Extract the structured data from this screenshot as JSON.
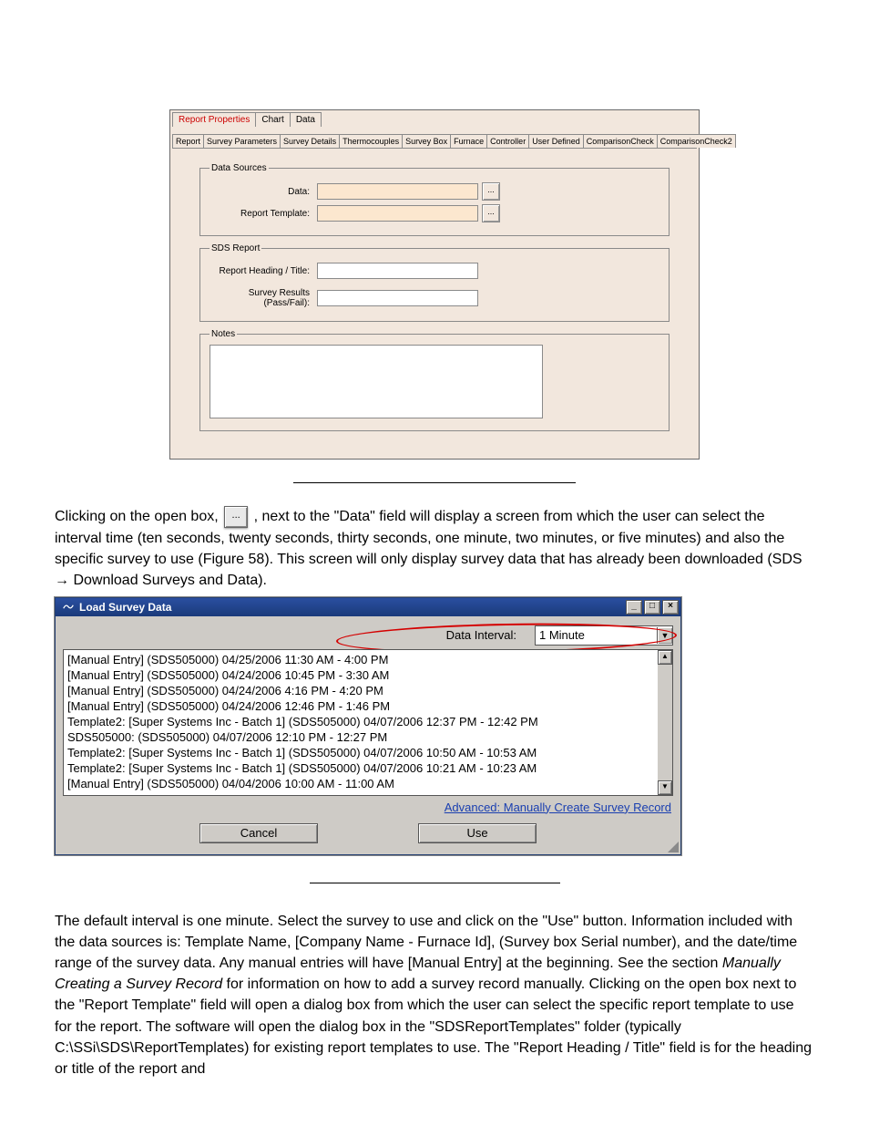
{
  "win1": {
    "topTabs": [
      {
        "label": "Report Properties",
        "active": true
      },
      {
        "label": "Chart",
        "active": false
      },
      {
        "label": "Data",
        "active": false
      }
    ],
    "subTabs": [
      "Report",
      "Survey Parameters",
      "Survey Details",
      "Thermocouples",
      "Survey Box",
      "Furnace",
      "Controller",
      "User Defined",
      "ComparisonCheck",
      "ComparisonCheck2"
    ],
    "groups": {
      "dataSources": {
        "legend": "Data Sources",
        "data_label": "Data:",
        "template_label": "Report Template:",
        "browse": "..."
      },
      "sdsReport": {
        "legend": "SDS Report",
        "heading_label": "Report Heading / Title:",
        "results_label": "Survey Results (Pass/Fail):"
      },
      "notes": {
        "legend": "Notes"
      }
    }
  },
  "para1_a": "Clicking on the open box, ",
  "para1_b": ", next to the \"Data\" field will display a screen from which the user can select the interval time (ten seconds, twenty seconds, thirty seconds, one minute, two minutes, or five minutes) and also the specific survey to use (Figure 58).  This screen will only display survey data that has already been downloaded (SDS → Download Surveys and Data).",
  "inline_browse": "...",
  "win2": {
    "title": "Load Survey Data",
    "winbtns": {
      "min": "_",
      "max": "□",
      "close": "×"
    },
    "di_label": "Data Interval:",
    "di_value": "1 Minute",
    "items": [
      "[Manual Entry]  (SDS505000) 04/25/2006 11:30 AM - 4:00 PM",
      "[Manual Entry]  (SDS505000) 04/24/2006 10:45 PM - 3:30 AM",
      "[Manual Entry]  (SDS505000) 04/24/2006 4:16 PM - 4:20 PM",
      "[Manual Entry]  (SDS505000) 04/24/2006 12:46 PM - 1:46 PM",
      "Template2: [Super Systems Inc - Batch 1]  (SDS505000) 04/07/2006 12:37 PM - 12:42 PM",
      "SDS505000:  (SDS505000) 04/07/2006 12:10 PM - 12:27 PM",
      "Template2: [Super Systems Inc - Batch 1]  (SDS505000) 04/07/2006 10:50 AM - 10:53 AM",
      "Template2: [Super Systems Inc - Batch 1]  (SDS505000) 04/07/2006 10:21 AM - 10:23 AM",
      "[Manual Entry]  (SDS505000) 04/04/2006 10:00 AM - 11:00 AM"
    ],
    "adv": "Advanced: Manually Create Survey Record",
    "cancel": "Cancel",
    "use": "Use",
    "scroll": {
      "up": "▲",
      "down": "▼"
    },
    "dd": "▼"
  },
  "para2_a": "The default interval is one minute.  Select the survey to use and click on the \"Use\" button.  Information included with the data sources is: Template Name, [Company Name - Furnace Id], (Survey box Serial number), and the date/time range of the survey data.  Any manual entries will have [Manual Entry] at the beginning.  See the section ",
  "para2_i": "Manually Creating a Survey Record",
  "para2_b": " for information on how to add a survey record manually.  Clicking on the open box next to the \"Report Template\" field will open a dialog box from which the user can select the specific report template to use for the report.  The software will open the dialog box in the \"SDSReportTemplates\" folder (typically C:\\SSi\\SDS\\ReportTemplates) for existing report templates to use.  The \"Report Heading / Title\" field is for the heading or title of the report and"
}
